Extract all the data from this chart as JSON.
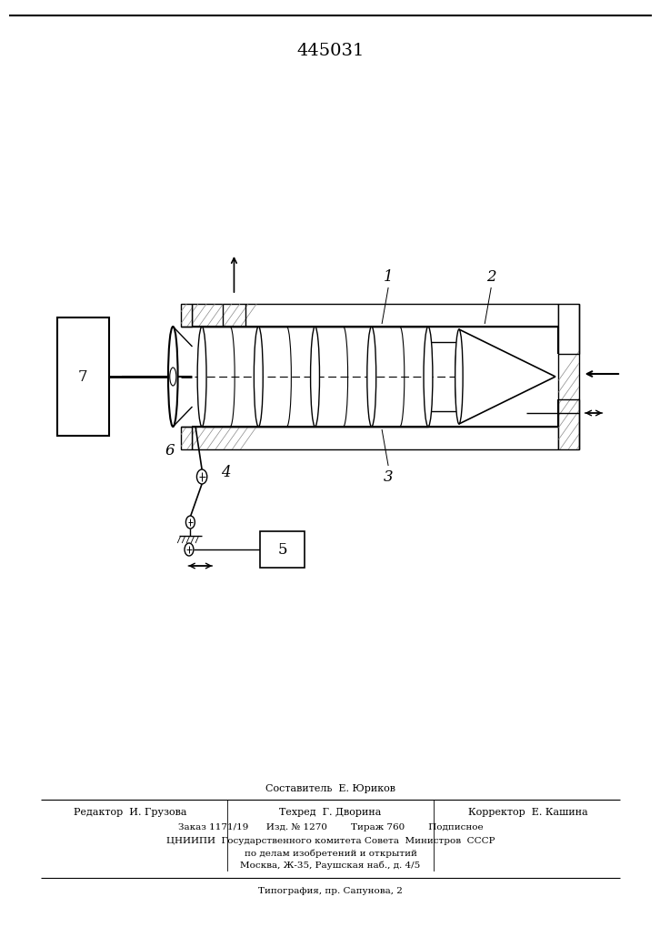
{
  "title": "445031",
  "bg_color": "#ffffff",
  "footer": {
    "composer": "Составитель  Е. Юриков",
    "editor": "Редактор  И. Грузова",
    "tech": "Техред  Г. Дворина",
    "corrector": "Корректор  Е. Кашина",
    "order": "Заказ 1171/19      Изд. № 1270        Тираж 760        Подписное",
    "org1": "ЦНИИПИ  Государственного комитета Совета  Министров  СССР",
    "org2": "по делам изобретений и открытий",
    "org3": "Москва, Ж-35, Раушская наб., д. 4/5",
    "print_str": "Типография, пр. Сапунова, 2"
  }
}
